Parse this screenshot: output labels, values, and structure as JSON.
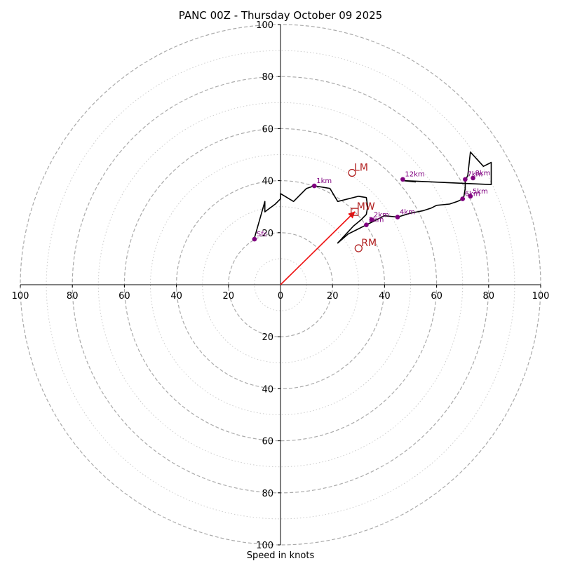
{
  "chart_data": {
    "type": "hodograph",
    "title": "PANC 00Z - Thursday October 09 2025",
    "xlabel": "Speed in knots",
    "axis_range": [
      -100,
      100
    ],
    "major_rings": [
      20,
      40,
      60,
      80,
      100
    ],
    "minor_rings": [
      10,
      30,
      50,
      70,
      90
    ],
    "x_tick_labels": [
      "100",
      "80",
      "60",
      "40",
      "20",
      "0",
      "20",
      "40",
      "60",
      "80",
      "100"
    ],
    "x_tick_values": [
      -100,
      -80,
      -60,
      -40,
      -20,
      0,
      20,
      40,
      60,
      80,
      100
    ],
    "y_tick_labels": [
      "100",
      "80",
      "60",
      "40",
      "20",
      "20",
      "40",
      "60",
      "80",
      "100"
    ],
    "y_tick_values": [
      100,
      80,
      60,
      40,
      20,
      -20,
      -40,
      -60,
      -80,
      -100
    ],
    "trace": [
      [
        -10,
        18
      ],
      [
        -6,
        32
      ],
      [
        -6,
        28
      ],
      [
        -2,
        31
      ],
      [
        0,
        33
      ],
      [
        0,
        35
      ],
      [
        5,
        32
      ],
      [
        10,
        37
      ],
      [
        13,
        38
      ],
      [
        19,
        37
      ],
      [
        22,
        32
      ],
      [
        30,
        34
      ],
      [
        33,
        33.5
      ],
      [
        33.5,
        30
      ],
      [
        33,
        27
      ],
      [
        32,
        26
      ],
      [
        31,
        25
      ],
      [
        28,
        22.5
      ],
      [
        22,
        16
      ],
      [
        26,
        19.5
      ],
      [
        33,
        23
      ],
      [
        35,
        24
      ],
      [
        40,
        26.5
      ],
      [
        45,
        26
      ],
      [
        50,
        27.5
      ],
      [
        55,
        28.5
      ],
      [
        58,
        29.5
      ],
      [
        60,
        30.5
      ],
      [
        65,
        31
      ],
      [
        68,
        32
      ],
      [
        70,
        33
      ],
      [
        70.5,
        34
      ],
      [
        71,
        37
      ],
      [
        71,
        40
      ],
      [
        72,
        42
      ],
      [
        73,
        51
      ],
      [
        78,
        45.5
      ],
      [
        81,
        47
      ],
      [
        81,
        38.5
      ],
      [
        47,
        40
      ],
      [
        52,
        39.5
      ]
    ],
    "height_markers": [
      {
        "label": "Sfc",
        "u": -10,
        "v": 17.5
      },
      {
        "label": "1km",
        "u": 13,
        "v": 38
      },
      {
        "label": "2km",
        "u": 35,
        "v": 25
      },
      {
        "label": "3km",
        "u": 33,
        "v": 23
      },
      {
        "label": "4km",
        "u": 45,
        "v": 26
      },
      {
        "label": "5km",
        "u": 73,
        "v": 34
      },
      {
        "label": "6km",
        "u": 70,
        "v": 33
      },
      {
        "label": "7km",
        "u": 71,
        "v": 40.5
      },
      {
        "label": "8km",
        "u": 74,
        "v": 41
      },
      {
        "label": "12km",
        "u": 47,
        "v": 40.5
      }
    ],
    "storm_motion": {
      "LM": {
        "label": "LM",
        "u": 27.5,
        "v": 43
      },
      "MW": {
        "label": "MW",
        "u": 28.5,
        "v": 28
      },
      "RM": {
        "label": "RM",
        "u": 30,
        "v": 14
      }
    },
    "mean_wind_vector": {
      "u": 28.5,
      "v": 28
    },
    "colors": {
      "trace": "#000000",
      "marker": "#800080",
      "marker_label": "#800080",
      "motion": "#b22222",
      "vector": "#ee1111",
      "ring": "#aaaaaa",
      "minor_ring": "#cccccc",
      "axis": "#000000"
    }
  }
}
